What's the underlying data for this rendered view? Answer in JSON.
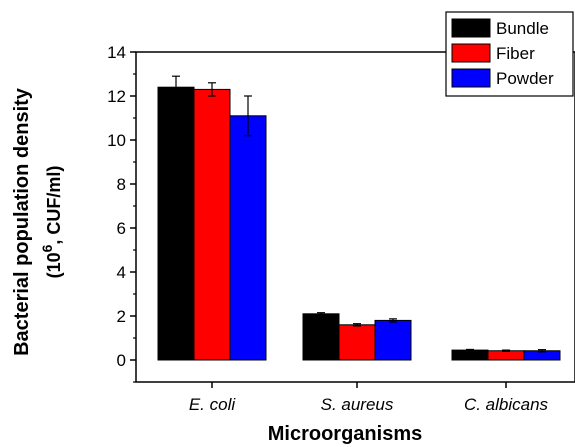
{
  "chart_data": {
    "type": "bar",
    "categories": [
      "E. coli",
      "S. aureus",
      "C. albicans"
    ],
    "series": [
      {
        "name": "Bundle",
        "color": "#000000",
        "values": [
          12.4,
          2.1,
          0.45
        ],
        "errors": [
          0.5,
          0.05,
          0.03
        ]
      },
      {
        "name": "Fiber",
        "color": "#ff0000",
        "values": [
          12.3,
          1.6,
          0.42
        ],
        "errors": [
          0.3,
          0.05,
          0.03
        ]
      },
      {
        "name": "Powder",
        "color": "#0000ff",
        "values": [
          11.1,
          1.8,
          0.42
        ],
        "errors": [
          0.9,
          0.07,
          0.05
        ]
      }
    ],
    "xlabel": "Microorganisms",
    "ylabel": "Bacterial population density",
    "ylabel_unit": {
      "prefix": "(10",
      "superscript": "6",
      "suffix": ", CUF/ml)"
    },
    "ylim": [
      -1,
      14
    ],
    "yticks": [
      0,
      2,
      4,
      6,
      8,
      10,
      12,
      14
    ],
    "legend_position": "top-right",
    "grid": false
  }
}
